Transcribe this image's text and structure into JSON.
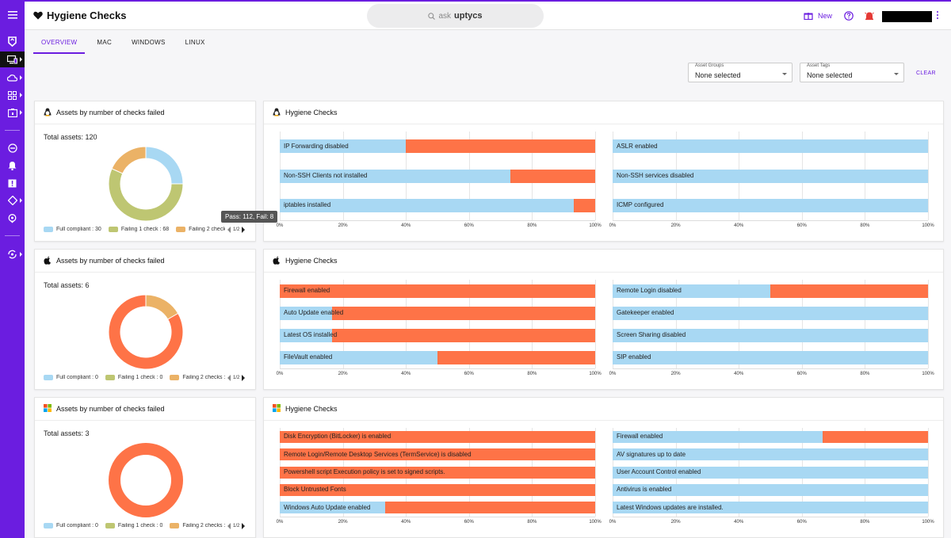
{
  "app": {
    "title": "Hygiene Checks",
    "search_text": "ask",
    "search_brand": "uptycs",
    "new_label": "New"
  },
  "tabs": [
    "OVERVIEW",
    "MAC",
    "WINDOWS",
    "LINUX"
  ],
  "filters": {
    "asset_groups": {
      "label": "Asset Groups",
      "value": "None selected"
    },
    "asset_tags": {
      "label": "Asset Tags",
      "value": "None selected"
    },
    "clear_label": "CLEAR"
  },
  "colors": {
    "accent": "#6b1de0",
    "pass": "#a8d8f3",
    "fail": "#fe7347",
    "full": "#a8d8f3",
    "fail1": "#bec672",
    "fail2": "#ebb266"
  },
  "tooltip": "Pass: 112, Fail: 8",
  "sections": [
    {
      "os": "linux",
      "donut_title": "Assets by number of checks failed",
      "total_label": "Total assets: 120",
      "donut": [
        30,
        68,
        22
      ],
      "legend": [
        "Full compliant : 30",
        "Failing 1 check : 68",
        "Failing 2 check"
      ],
      "pager": "1/2",
      "checks_title": "Hygiene Checks",
      "ticks": [
        "0%",
        "20%",
        "40%",
        "60%",
        "80%",
        "100%"
      ],
      "left": [
        {
          "label": "IP Forwarding disabled",
          "pass": 0.4
        },
        {
          "label": "Non-SSH Clients not installed",
          "pass": 0.73
        },
        {
          "label": "iptables installed",
          "pass": 0.933
        }
      ],
      "right": [
        {
          "label": "ASLR enabled",
          "pass": 1.0
        },
        {
          "label": "Non-SSH services disabled",
          "pass": 1.0
        },
        {
          "label": "ICMP configured",
          "pass": 1.0
        }
      ]
    },
    {
      "os": "mac",
      "donut_title": "Assets by number of checks failed",
      "total_label": "Total assets: 6",
      "donut": [
        0,
        0,
        1,
        5
      ],
      "legend": [
        "Full compliant : 0",
        "Failing 1 check : 0",
        "Failing 2 checks :"
      ],
      "pager": "1/2",
      "checks_title": "Hygiene Checks",
      "ticks": [
        "0%",
        "20%",
        "40%",
        "60%",
        "80%",
        "100%"
      ],
      "left": [
        {
          "label": "Firewall enabled",
          "pass": 0.0
        },
        {
          "label": "Auto Update enabled",
          "pass": 0.167
        },
        {
          "label": "Latest OS installed",
          "pass": 0.167
        },
        {
          "label": "FileVault enabled",
          "pass": 0.5
        }
      ],
      "right": [
        {
          "label": "Remote Login disabled",
          "pass": 0.5
        },
        {
          "label": "Gatekeeper enabled",
          "pass": 1.0
        },
        {
          "label": "Screen Sharing disabled",
          "pass": 1.0
        },
        {
          "label": "SIP enabled",
          "pass": 1.0
        }
      ]
    },
    {
      "os": "windows",
      "donut_title": "Assets by number of checks failed",
      "total_label": "Total assets: 3",
      "donut": [
        0,
        0,
        0,
        3
      ],
      "legend": [
        "Full compliant : 0",
        "Failing 1 check : 0",
        "Failing 2 checks :"
      ],
      "pager": "1/2",
      "checks_title": "Hygiene Checks",
      "ticks": [
        "0%",
        "20%",
        "40%",
        "60%",
        "80%",
        "100%"
      ],
      "left": [
        {
          "label": "Disk Encryption (BitLocker) is enabled",
          "pass": 0.0
        },
        {
          "label": "Remote Login/Remote Desktop Services (TermService) is disabled",
          "pass": 0.0
        },
        {
          "label": "Powershell script Execution policy is set to signed scripts.",
          "pass": 0.0
        },
        {
          "label": "Block Untrusted Fonts",
          "pass": 0.0
        },
        {
          "label": "Windows Auto Update enabled",
          "pass": 0.333
        }
      ],
      "right": [
        {
          "label": "Firewall enabled",
          "pass": 0.667
        },
        {
          "label": "AV signatures up to date",
          "pass": 1.0
        },
        {
          "label": "User Account Control enabled",
          "pass": 1.0
        },
        {
          "label": "Antivirus is enabled",
          "pass": 1.0
        },
        {
          "label": "Latest Windows updates are installed.",
          "pass": 1.0
        }
      ]
    }
  ]
}
